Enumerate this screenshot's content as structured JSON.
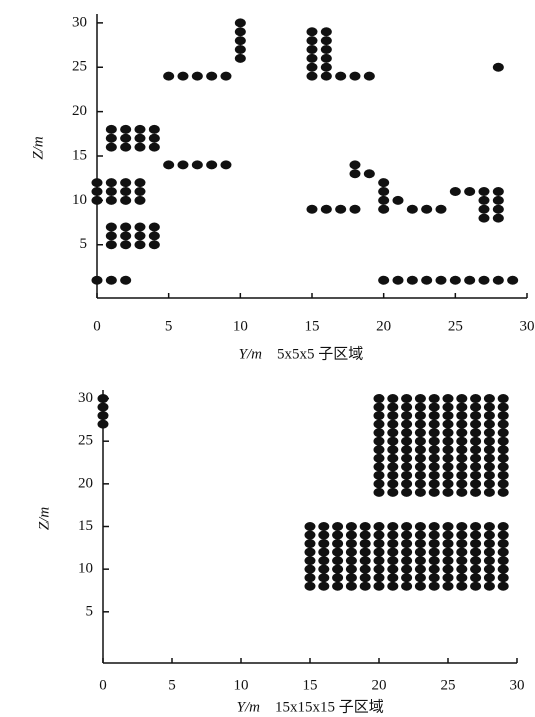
{
  "chart_data": [
    {
      "type": "scatter",
      "xlabel": "Y/m",
      "caption": "5x5x5 子区域",
      "ylabel": "Z/m",
      "xlim": [
        0,
        30
      ],
      "ylim": [
        -1,
        31
      ],
      "xticks": [
        0,
        5,
        10,
        15,
        20,
        25,
        30
      ],
      "yticks": [
        5,
        10,
        15,
        20,
        25,
        30
      ],
      "color": "#111111",
      "x": [
        0,
        1,
        2,
        1,
        2,
        3,
        4,
        1,
        2,
        3,
        4,
        1,
        2,
        3,
        4,
        0,
        1,
        2,
        3,
        0,
        1,
        2,
        3,
        0,
        1,
        2,
        3,
        1,
        2,
        3,
        4,
        1,
        2,
        3,
        4,
        1,
        2,
        3,
        4,
        5,
        6,
        7,
        8,
        9,
        5,
        6,
        7,
        8,
        9,
        10,
        10,
        10,
        10,
        10,
        15,
        16,
        15,
        16,
        15,
        16,
        15,
        16,
        15,
        16,
        15,
        16,
        17,
        18,
        19,
        15,
        16,
        17,
        18,
        18,
        18,
        19,
        20,
        20,
        20,
        20,
        21,
        22,
        23,
        24,
        25,
        26,
        27,
        28,
        27,
        28,
        27,
        28,
        27,
        28,
        28,
        20,
        21,
        22,
        23,
        24,
        25,
        26,
        27,
        28,
        29
      ],
      "y": [
        1,
        1,
        1,
        5,
        5,
        5,
        5,
        6,
        6,
        6,
        6,
        7,
        7,
        7,
        7,
        10,
        10,
        10,
        10,
        11,
        11,
        11,
        11,
        12,
        12,
        12,
        12,
        16,
        16,
        16,
        16,
        17,
        17,
        17,
        17,
        18,
        18,
        18,
        18,
        14,
        14,
        14,
        14,
        14,
        24,
        24,
        24,
        24,
        24,
        26,
        27,
        28,
        29,
        30,
        24,
        24,
        25,
        25,
        26,
        26,
        27,
        27,
        28,
        28,
        29,
        29,
        24,
        24,
        24,
        9,
        9,
        9,
        9,
        13,
        14,
        13,
        9,
        10,
        11,
        12,
        10,
        9,
        9,
        9,
        11,
        11,
        8,
        8,
        9,
        9,
        10,
        10,
        11,
        11,
        25,
        1,
        1,
        1,
        1,
        1,
        1,
        1,
        1,
        1,
        1
      ]
    },
    {
      "type": "scatter",
      "xlabel": "Y/m",
      "caption": "15x15x15 子区域",
      "ylabel": "Z/m",
      "xlim": [
        0,
        30
      ],
      "ylim": [
        -1,
        31
      ],
      "xticks": [
        0,
        5,
        10,
        15,
        20,
        25,
        30
      ],
      "yticks": [
        5,
        10,
        15,
        20,
        25,
        30
      ],
      "color": "#111111",
      "x": [
        0,
        0,
        0,
        0,
        20,
        21,
        22,
        23,
        24,
        25,
        26,
        27,
        28,
        29,
        20,
        21,
        22,
        23,
        24,
        25,
        26,
        27,
        28,
        29,
        20,
        21,
        22,
        23,
        24,
        25,
        26,
        27,
        28,
        29,
        20,
        21,
        22,
        23,
        24,
        25,
        26,
        27,
        28,
        29,
        20,
        21,
        22,
        23,
        24,
        25,
        26,
        27,
        28,
        29,
        20,
        21,
        22,
        23,
        24,
        25,
        26,
        27,
        28,
        29,
        20,
        21,
        22,
        23,
        24,
        25,
        26,
        27,
        28,
        29,
        20,
        21,
        22,
        23,
        24,
        25,
        26,
        27,
        28,
        29,
        20,
        21,
        22,
        23,
        24,
        25,
        26,
        27,
        28,
        29,
        20,
        21,
        22,
        23,
        24,
        25,
        26,
        27,
        28,
        29,
        20,
        21,
        22,
        23,
        24,
        25,
        26,
        27,
        28,
        29,
        20,
        21,
        22,
        23,
        24,
        25,
        26,
        27,
        28,
        29,
        15,
        16,
        17,
        18,
        19,
        20,
        21,
        22,
        23,
        24,
        25,
        26,
        27,
        28,
        29,
        15,
        16,
        17,
        18,
        19,
        20,
        21,
        22,
        23,
        24,
        25,
        26,
        27,
        28,
        29,
        15,
        16,
        17,
        18,
        19,
        20,
        21,
        22,
        23,
        24,
        25,
        26,
        27,
        28,
        29,
        15,
        16,
        17,
        18,
        19,
        20,
        21,
        22,
        23,
        24,
        25,
        26,
        27,
        28,
        29,
        15,
        16,
        17,
        18,
        19,
        20,
        21,
        22,
        23,
        24,
        25,
        26,
        27,
        28,
        29,
        15,
        16,
        17,
        18,
        19,
        20,
        21,
        22,
        23,
        24,
        25,
        26,
        27,
        28,
        29,
        15,
        16,
        17,
        18,
        19,
        20,
        21,
        22,
        23,
        24,
        25,
        26,
        27,
        28,
        29,
        15,
        16,
        17,
        18,
        19,
        20,
        21,
        22,
        23,
        24,
        25,
        26,
        27,
        28,
        29
      ],
      "y": [
        27,
        28,
        29,
        30,
        30,
        30,
        30,
        30,
        30,
        30,
        30,
        30,
        30,
        30,
        29,
        29,
        29,
        29,
        29,
        29,
        29,
        29,
        29,
        29,
        28,
        28,
        28,
        28,
        28,
        28,
        28,
        28,
        28,
        28,
        27,
        27,
        27,
        27,
        27,
        27,
        27,
        27,
        27,
        27,
        26,
        26,
        26,
        26,
        26,
        26,
        26,
        26,
        26,
        26,
        25,
        25,
        25,
        25,
        25,
        25,
        25,
        25,
        25,
        25,
        24,
        24,
        24,
        24,
        24,
        24,
        24,
        24,
        24,
        24,
        23,
        23,
        23,
        23,
        23,
        23,
        23,
        23,
        23,
        23,
        22,
        22,
        22,
        22,
        22,
        22,
        22,
        22,
        22,
        22,
        21,
        21,
        21,
        21,
        21,
        21,
        21,
        21,
        21,
        21,
        20,
        20,
        20,
        20,
        20,
        20,
        20,
        20,
        20,
        20,
        19,
        19,
        19,
        19,
        19,
        19,
        19,
        19,
        19,
        19,
        15,
        15,
        15,
        15,
        15,
        15,
        15,
        15,
        15,
        15,
        15,
        15,
        15,
        15,
        15,
        14,
        14,
        14,
        14,
        14,
        14,
        14,
        14,
        14,
        14,
        14,
        14,
        14,
        14,
        14,
        13,
        13,
        13,
        13,
        13,
        13,
        13,
        13,
        13,
        13,
        13,
        13,
        13,
        13,
        13,
        12,
        12,
        12,
        12,
        12,
        12,
        12,
        12,
        12,
        12,
        12,
        12,
        12,
        12,
        12,
        11,
        11,
        11,
        11,
        11,
        11,
        11,
        11,
        11,
        11,
        11,
        11,
        11,
        11,
        11,
        10,
        10,
        10,
        10,
        10,
        10,
        10,
        10,
        10,
        10,
        10,
        10,
        10,
        10,
        10,
        9,
        9,
        9,
        9,
        9,
        9,
        9,
        9,
        9,
        9,
        9,
        9,
        9,
        9,
        9,
        8,
        8,
        8,
        8,
        8,
        8,
        8,
        8,
        8,
        8,
        8,
        8,
        8,
        8,
        8
      ]
    }
  ]
}
